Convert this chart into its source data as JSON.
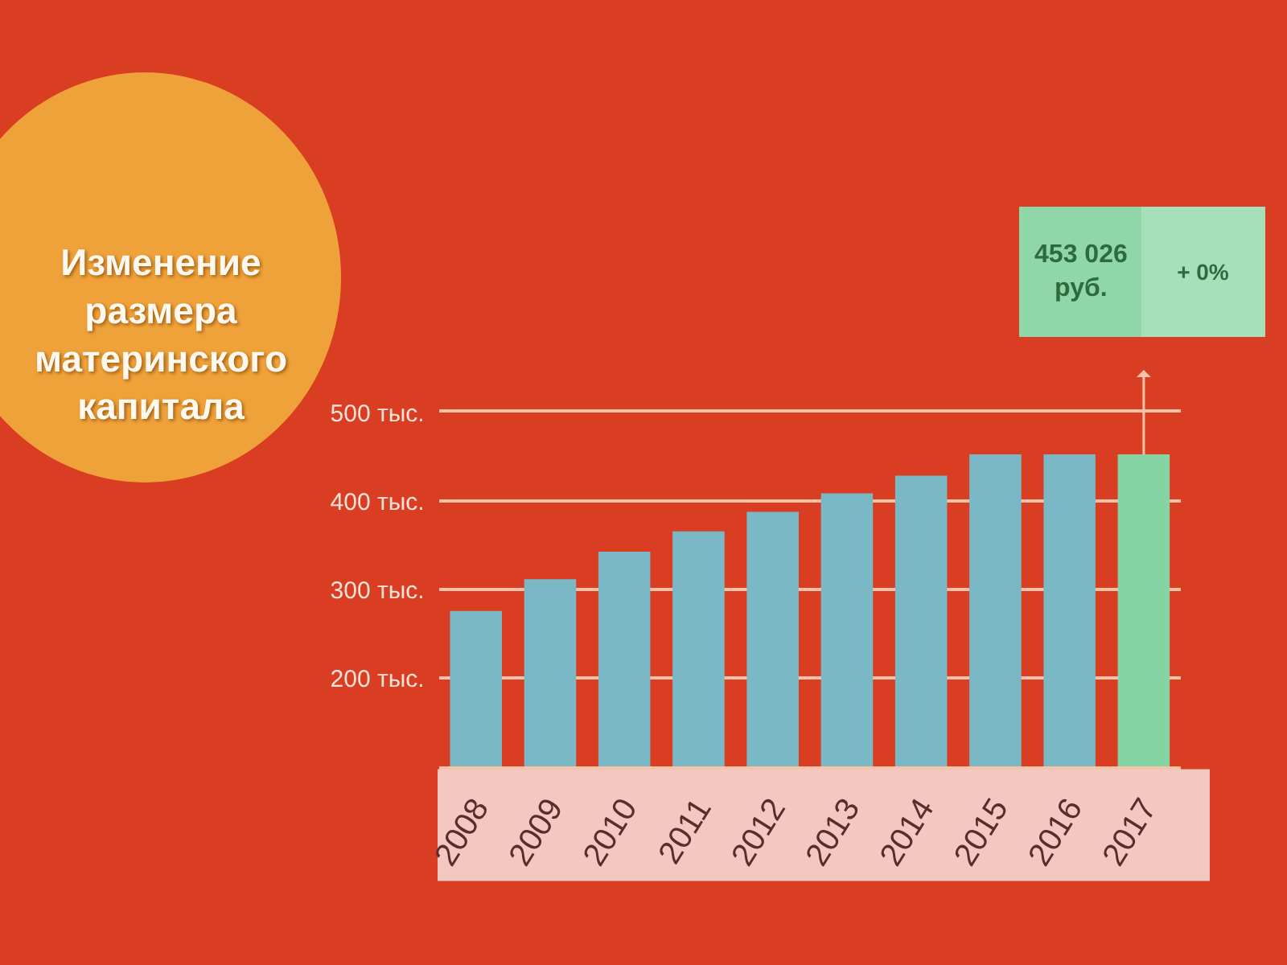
{
  "chart_data": {
    "type": "bar",
    "title": "Изменение размера материнского капитала",
    "categories": [
      "2008",
      "2009",
      "2010",
      "2011",
      "2012",
      "2013",
      "2014",
      "2015",
      "2016",
      "2017"
    ],
    "values": [
      276,
      312,
      343,
      366,
      388,
      409,
      429,
      453,
      453,
      453
    ],
    "colors": [
      "#7ab8c6",
      "#7ab8c6",
      "#7ab8c6",
      "#7ab8c6",
      "#7ab8c6",
      "#7ab8c6",
      "#7ab8c6",
      "#7ab8c6",
      "#7ab8c6",
      "#86d3a4"
    ],
    "ylim": [
      100,
      500
    ],
    "yticks": [
      {
        "value": 200,
        "label": "200 тыс."
      },
      {
        "value": 300,
        "label": "300 тыс."
      },
      {
        "value": 400,
        "label": "400 тыс."
      },
      {
        "value": 500,
        "label": "500 тыс."
      }
    ],
    "grid": "y",
    "annotations": [
      "453 026 руб.",
      "+ 0%"
    ]
  }
}
